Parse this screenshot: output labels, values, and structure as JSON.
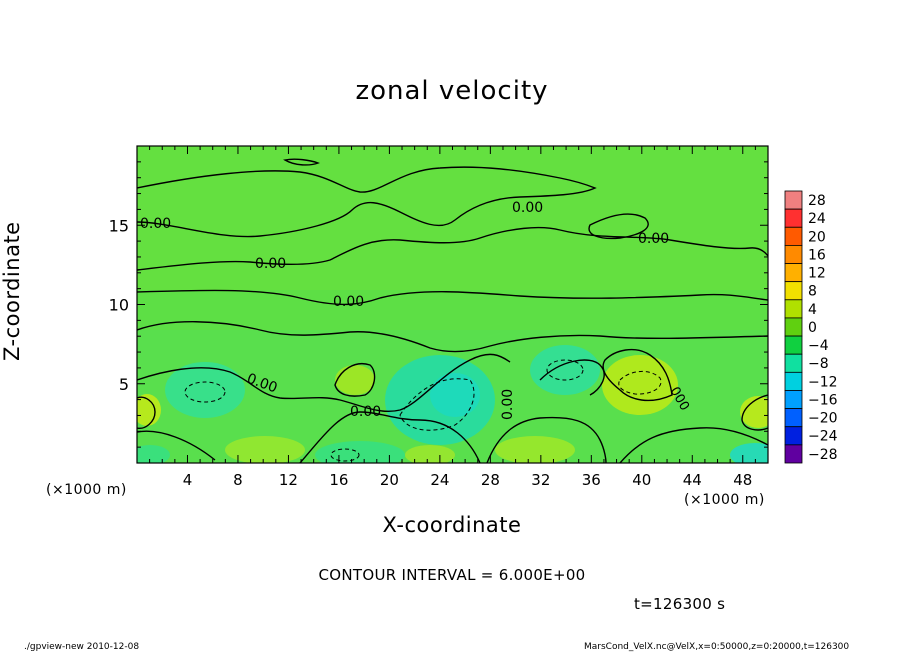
{
  "chart_data": {
    "type": "heatmap",
    "title": "zonal velocity",
    "xlabel": "X-coordinate",
    "ylabel": "Z-coordinate",
    "x_unit": "(×1000 m)",
    "xlim": [
      0,
      50
    ],
    "ylim": [
      0,
      20
    ],
    "x_ticks": [
      4,
      8,
      12,
      16,
      20,
      24,
      28,
      32,
      36,
      40,
      44,
      48
    ],
    "y_ticks": [
      5,
      10,
      15
    ],
    "colorbar": {
      "levels": [
        28,
        24,
        20,
        16,
        12,
        8,
        4,
        0,
        -4,
        -8,
        -12,
        -16,
        -20,
        -24,
        -28
      ],
      "labels": [
        "28",
        "24",
        "20",
        "16",
        "12",
        "8",
        "4",
        "0",
        "−4",
        "−8",
        "−12",
        "−16",
        "−20",
        "−24",
        "−28"
      ],
      "colors": [
        "#f08080",
        "#ff3030",
        "#ff5a00",
        "#ff8a00",
        "#ffb000",
        "#f2e000",
        "#b0e000",
        "#60d010",
        "#10d040",
        "#10e0a0",
        "#00d0e0",
        "#00a0ff",
        "#0060ff",
        "#0020e0",
        "#6000a0"
      ]
    },
    "contour_labels": [
      "0.00",
      "0.00",
      "0.00",
      "0.00",
      "0.00",
      "0.00",
      "0.00",
      "0.00"
    ],
    "contour_interval": "CONTOUR INTERVAL = 6.000E+00",
    "time": "t=126300 s"
  },
  "footer": {
    "left": "./gpview-new   2010-12-08",
    "right": "MarsCond_VelX.nc@VelX,x=0:50000,z=0:20000,t=126300"
  },
  "colors": {
    "base_field": "#62e23e",
    "slow_field": "#2ee08a",
    "fast_field": "#b6ea18"
  }
}
